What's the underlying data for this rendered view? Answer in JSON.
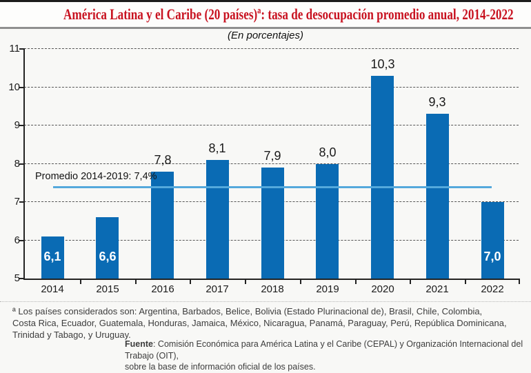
{
  "header": {
    "title": "América Latina y el Caribe (20 países)ª: tasa de desocupación promedio anual, 2014-2022",
    "subtitle": "(En porcentajes)"
  },
  "chart_data": {
    "type": "bar",
    "title": "América Latina y el Caribe (20 países)ª: tasa de desocupación promedio anual, 2014-2022",
    "subtitle": "(En porcentajes)",
    "categories": [
      "2014",
      "2015",
      "2016",
      "2017",
      "2018",
      "2019",
      "2020",
      "2021",
      "2022"
    ],
    "values": [
      6.1,
      6.6,
      7.8,
      8.1,
      7.9,
      8.0,
      10.3,
      9.3,
      7.0
    ],
    "labels": [
      "6,1",
      "6,6",
      "7,8",
      "8,1",
      "7,9",
      "8,0",
      "10,3",
      "9,3",
      "7,0"
    ],
    "label_inside": [
      true,
      true,
      false,
      false,
      false,
      false,
      false,
      false,
      true
    ],
    "ylim": [
      5,
      11
    ],
    "yticks": [
      5,
      6,
      7,
      8,
      9,
      10,
      11
    ],
    "grid": "horizontal-dashed",
    "legend": "none",
    "bar_color": "#0a6bb4",
    "reference_line": {
      "value": 7.4,
      "label": "Promedio 2014-2019: 7,4%",
      "color": "#55a9dc"
    }
  },
  "footnote": {
    "lines": [
      "ª Los países considerados son: Argentina, Barbados, Belice, Bolivia (Estado Plurinacional de), Brasil, Chile, Colombia,",
      "Costa Rica, Ecuador, Guatemala, Honduras, Jamaica, México, Nicaragua, Panamá, Paraguay, Perú, República Dominicana,",
      "Trinidad y Tabago, y Uruguay."
    ]
  },
  "source": {
    "label": "Fuente",
    "line1": ": Comisión Económica para América Latina y el Caribe (CEPAL) y Organización Internacional del Trabajo (OIT),",
    "line2": "sobre la base de información oficial de los países."
  },
  "colors": {
    "title_red": "#c81220",
    "bar_blue": "#0a6bb4",
    "average_line_blue": "#55a9dc",
    "background": "#f8f8f6"
  }
}
